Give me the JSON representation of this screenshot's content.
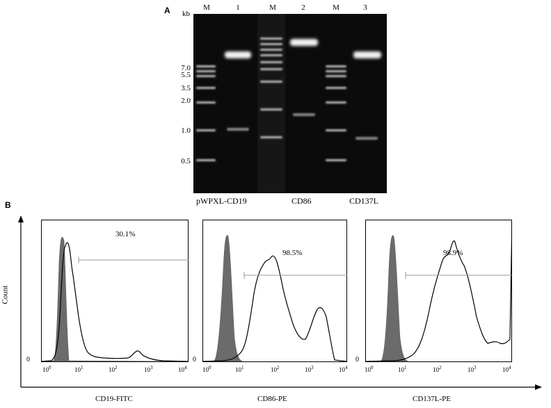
{
  "panel_a": {
    "letter": "A",
    "kb_unit": "kb",
    "lane_labels": [
      "M",
      "1",
      "M",
      "2",
      "M",
      "3"
    ],
    "size_markers": [
      "7.0",
      "5.5",
      "3.5",
      "2.0",
      "1.0",
      "0.5"
    ],
    "construct_names": [
      "pWPXL-CD19",
      "CD86",
      "CD137L"
    ]
  },
  "panel_b": {
    "letter": "B",
    "y_axis_title": "Count",
    "zero_label": "0",
    "plots": [
      {
        "marker": "CD19-FITC",
        "percent": "30.1%"
      },
      {
        "marker": "CD86-PE",
        "percent": "98.5%"
      },
      {
        "marker": "CD137L-PE",
        "percent": "98.9%"
      }
    ],
    "x_tick_labels": [
      {
        "base": "10",
        "exp": "0"
      },
      {
        "base": "10",
        "exp": "1"
      },
      {
        "base": "10",
        "exp": "2"
      },
      {
        "base": "10",
        "exp": "3"
      },
      {
        "base": "10",
        "exp": "4"
      }
    ]
  },
  "colors": {
    "gel_background": "#0b0b0b",
    "band": "#e8e8e8",
    "control_fill": "#6b6b6b",
    "gate_line": "#9a9a9a",
    "histogram_line": "#000000"
  }
}
